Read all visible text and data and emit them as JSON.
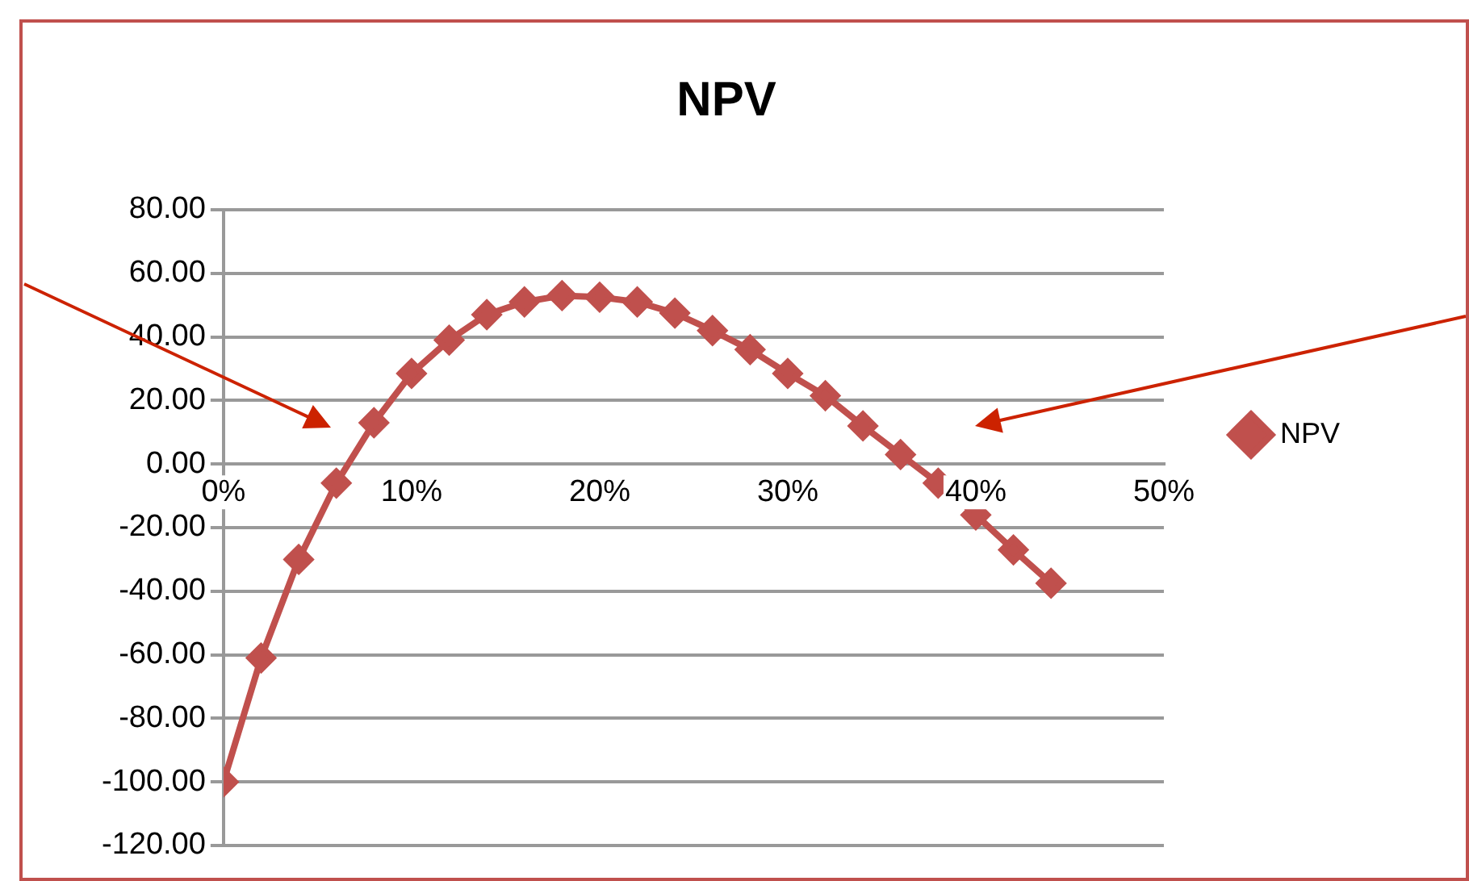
{
  "chart_data": {
    "type": "line",
    "title": "NPV",
    "x": [
      0,
      2,
      4,
      6,
      8,
      10,
      12,
      14,
      16,
      18,
      20,
      22,
      24,
      26,
      28,
      30,
      32,
      34,
      36,
      38,
      40,
      42,
      44
    ],
    "series": [
      {
        "name": "NPV",
        "color": "#c0504d",
        "values": [
          -100,
          -61,
          -30,
          -6,
          13,
          28.5,
          39,
          47,
          51,
          53,
          52.5,
          51,
          47.5,
          42,
          36,
          28.5,
          21.5,
          12,
          3,
          -6,
          -16,
          -27,
          -37.5
        ]
      }
    ],
    "xlim": [
      0,
      50
    ],
    "xticks": [
      {
        "value": 0,
        "label": "0%"
      },
      {
        "value": 10,
        "label": "10%"
      },
      {
        "value": 20,
        "label": "20%"
      },
      {
        "value": 30,
        "label": "30%"
      },
      {
        "value": 40,
        "label": "40%"
      },
      {
        "value": 50,
        "label": "50%"
      }
    ],
    "ylim": [
      -120,
      80
    ],
    "yticks": [
      {
        "value": -120,
        "label": "-120.00"
      },
      {
        "value": -100,
        "label": "-100.00"
      },
      {
        "value": -80,
        "label": "-80.00"
      },
      {
        "value": -60,
        "label": "-60.00"
      },
      {
        "value": -40,
        "label": "-40.00"
      },
      {
        "value": -20,
        "label": "-20.00"
      },
      {
        "value": 0,
        "label": "0.00"
      },
      {
        "value": 20,
        "label": "20.00"
      },
      {
        "value": 40,
        "label": "40.00"
      },
      {
        "value": 60,
        "label": "60.00"
      },
      {
        "value": 80,
        "label": "80.00"
      }
    ],
    "grid": "y",
    "legend": "right",
    "marker": "diamond",
    "line_style": "solid"
  }
}
